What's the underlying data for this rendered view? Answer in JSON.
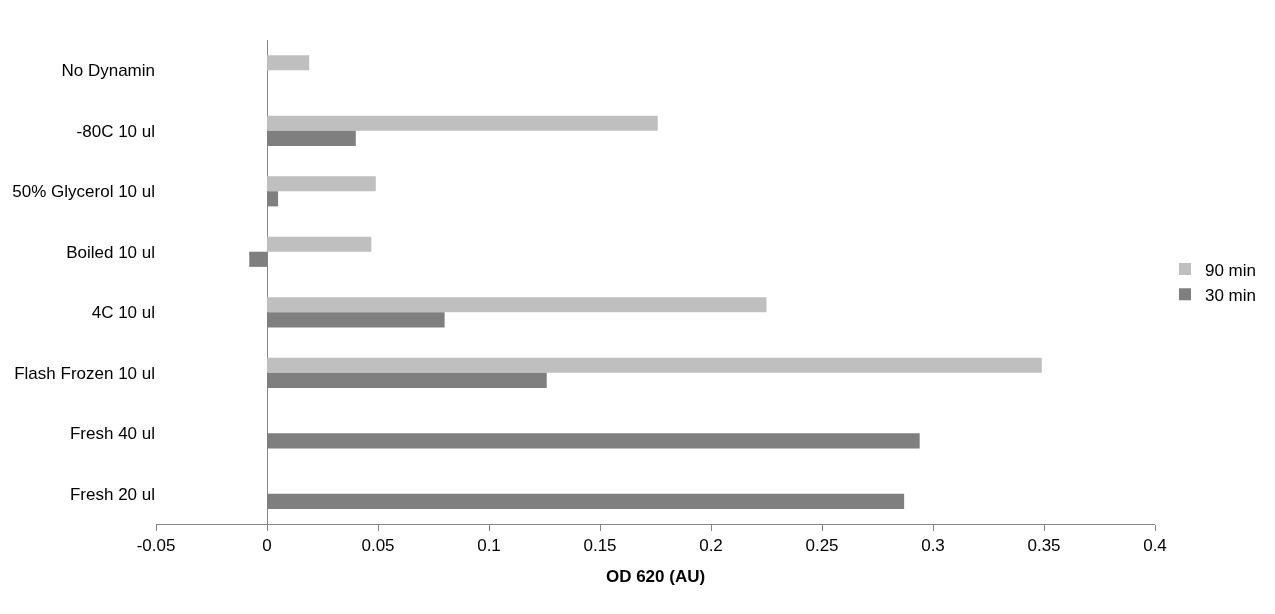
{
  "chart_data": {
    "type": "bar",
    "orientation": "horizontal",
    "xlabel": "OD 620 (AU)",
    "categories": [
      "No Dynamin",
      "-80C 10 ul",
      "50% Glycerol 10 ul",
      "Boiled 10 ul",
      "4C 10 ul",
      "Flash Frozen 10 ul",
      "Fresh 40 ul",
      "Fresh 20 ul"
    ],
    "series": [
      {
        "name": "90 min",
        "color": "#bfbfbf",
        "values": [
          0.019,
          0.176,
          0.049,
          0.047,
          0.225,
          0.349,
          null,
          null
        ]
      },
      {
        "name": "30 min",
        "color": "#7f7f7f",
        "values": [
          null,
          0.04,
          0.005,
          -0.008,
          0.08,
          0.126,
          0.294,
          0.287
        ]
      }
    ],
    "xlim": [
      -0.05,
      0.4
    ],
    "xticks": [
      -0.05,
      0,
      0.05,
      0.1,
      0.15,
      0.2,
      0.25,
      0.3,
      0.35,
      0.4
    ],
    "legend": "right"
  }
}
